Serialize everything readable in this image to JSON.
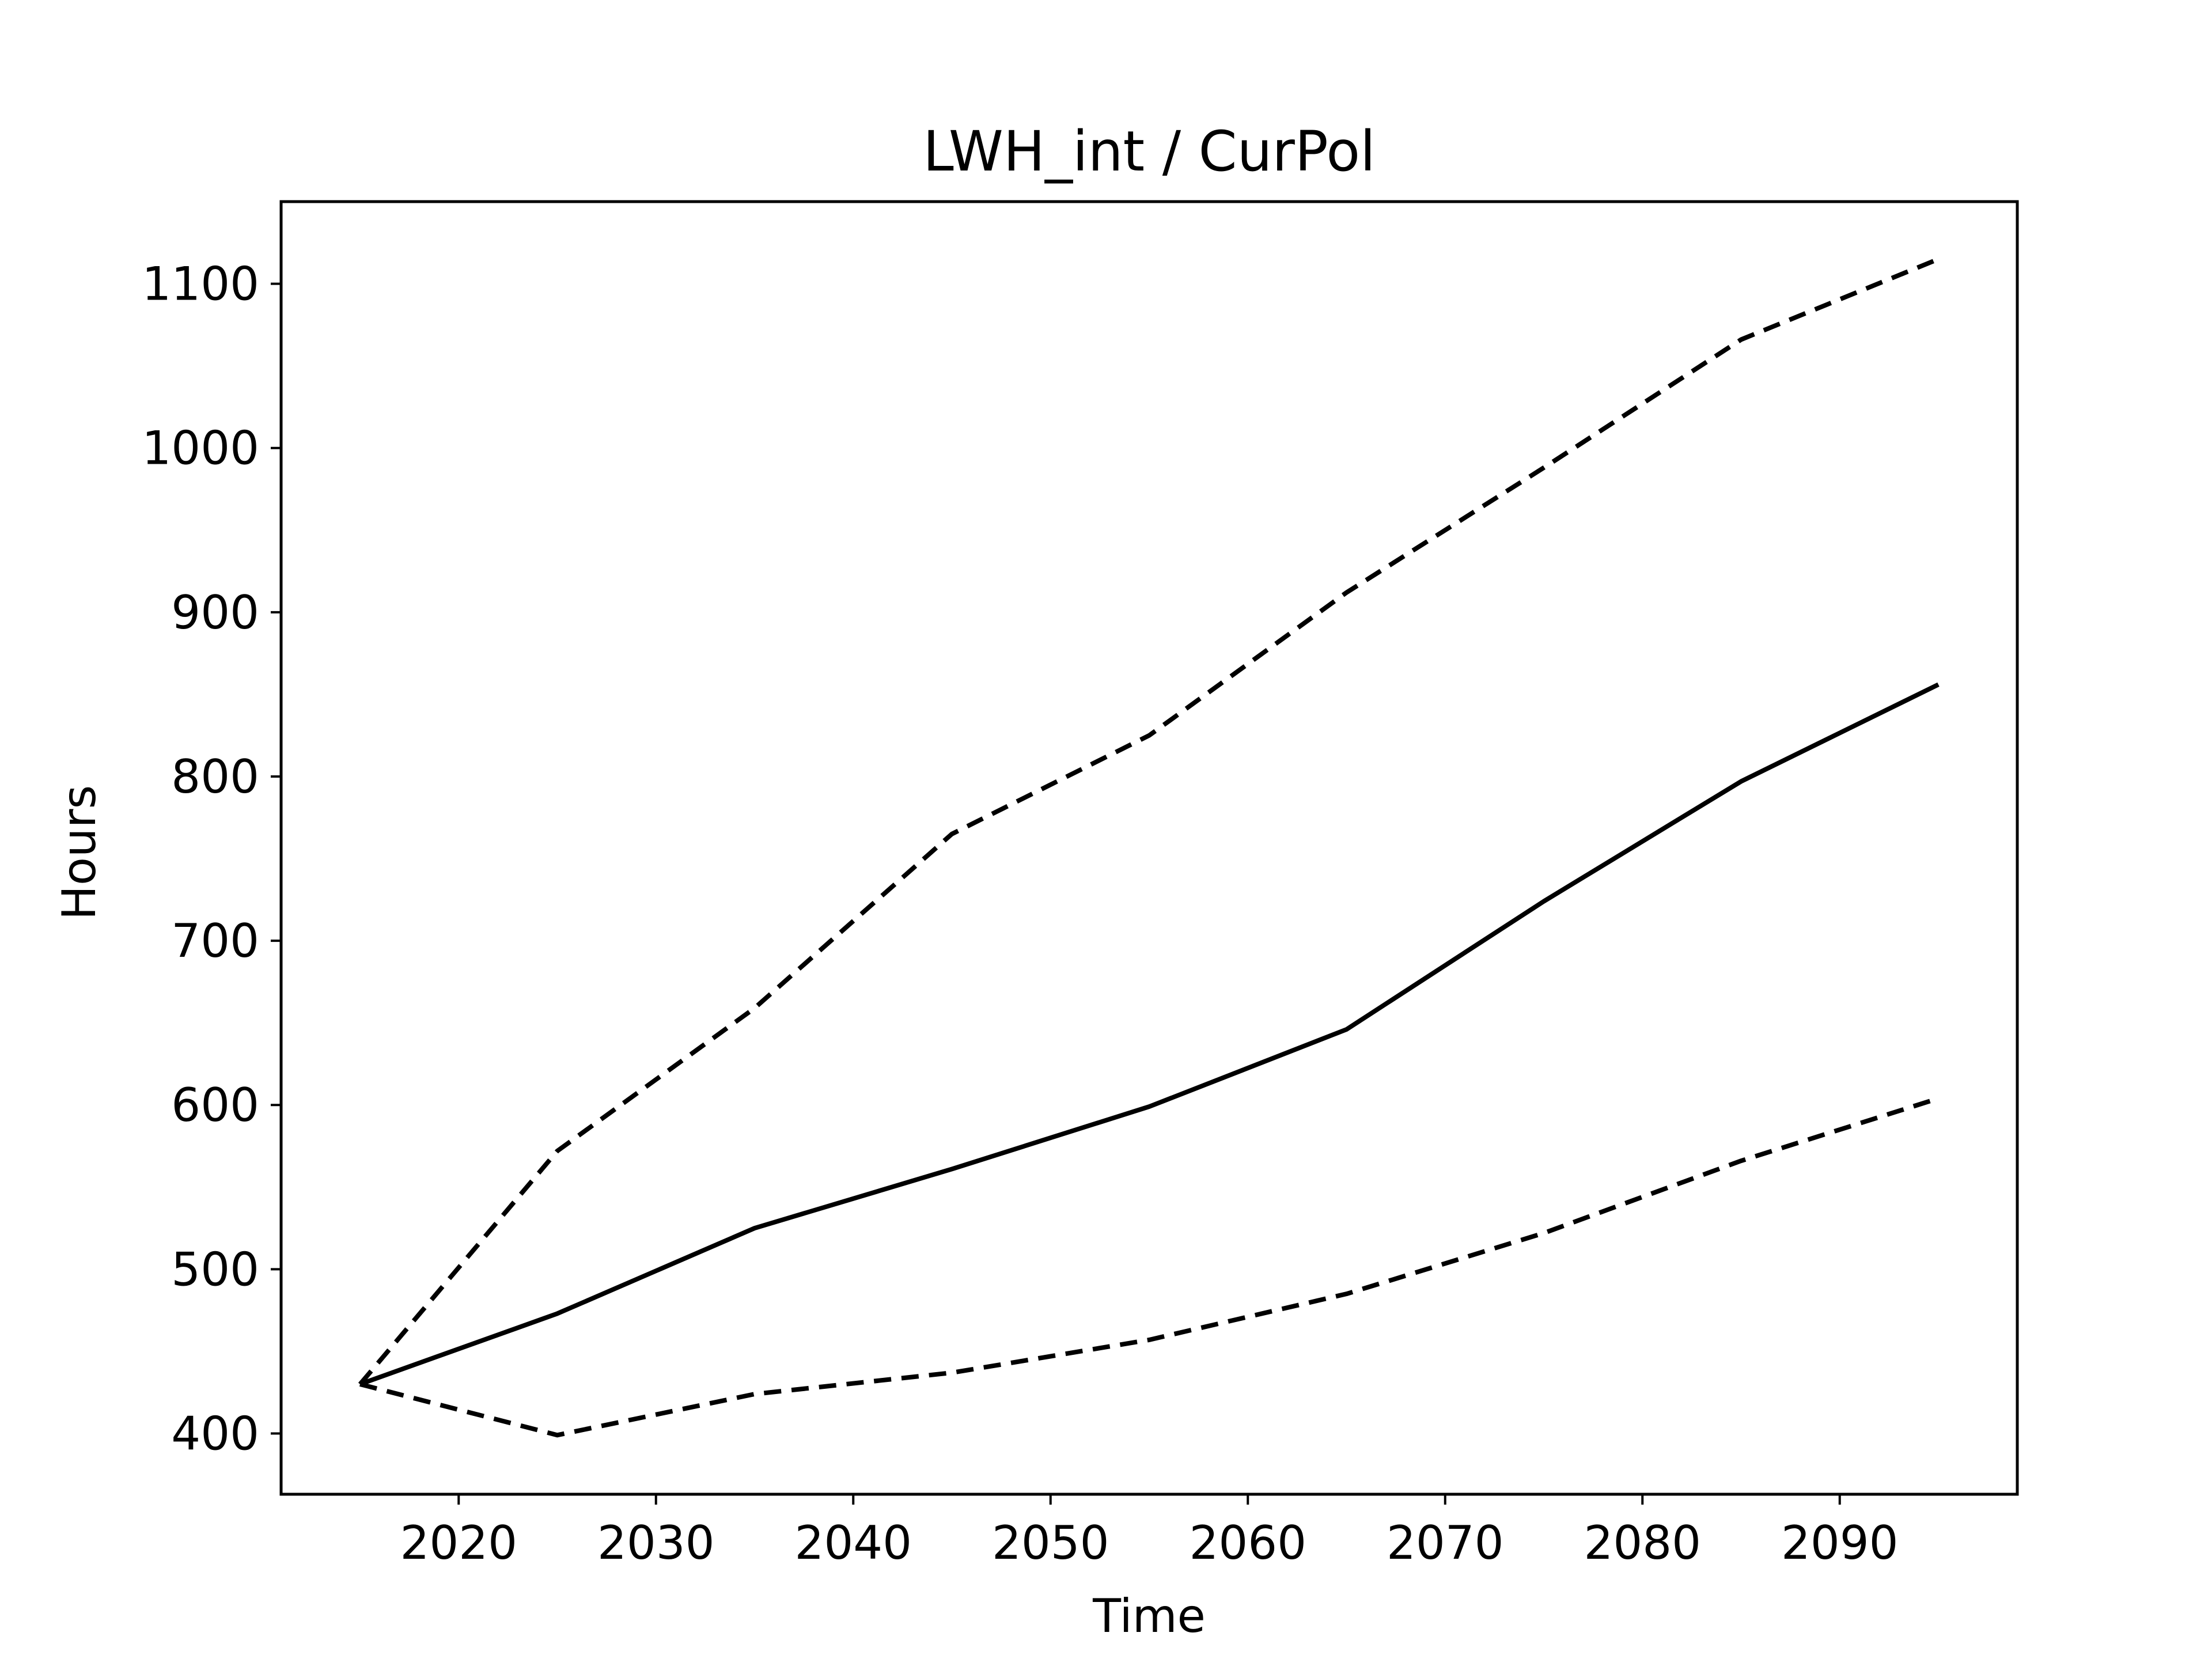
{
  "chart_data": {
    "type": "line",
    "title": "LWH_int / CurPol",
    "xlabel": "Time",
    "ylabel": "Hours",
    "x": [
      2015,
      2025,
      2035,
      2045,
      2055,
      2065,
      2075,
      2085,
      2095
    ],
    "series": [
      {
        "style": "solid",
        "values": [
          430,
          473,
          525,
          561,
          599,
          646,
          724,
          797,
          856
        ]
      },
      {
        "style": "dashed",
        "values": [
          430,
          572,
          659,
          765,
          825,
          912,
          988,
          1066,
          1115
        ]
      },
      {
        "style": "dashed",
        "values": [
          430,
          399,
          424,
          437,
          457,
          485,
          522,
          566,
          604
        ]
      }
    ],
    "xlim": [
      2011,
      2099
    ],
    "ylim": [
      363,
      1150
    ],
    "xticks": [
      2020,
      2030,
      2040,
      2050,
      2060,
      2070,
      2080,
      2090
    ],
    "yticks": [
      400,
      500,
      600,
      700,
      800,
      900,
      1000,
      1100
    ],
    "grid": false,
    "legend": "none",
    "line_color": "#000000"
  }
}
